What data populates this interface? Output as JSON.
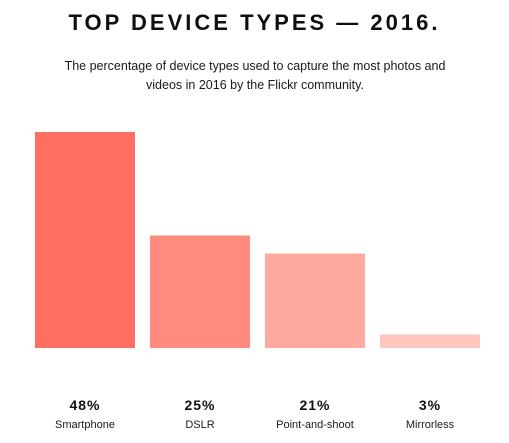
{
  "chart_data": {
    "type": "bar",
    "title": "TOP DEVICE TYPES — 2016.",
    "subtitle": "The percentage of device types used to capture the most photos and videos in 2016 by the Flickr community.",
    "categories": [
      "Smartphone",
      "DSLR",
      "Point-and-shoot",
      "Mirrorless"
    ],
    "values": [
      48,
      25,
      21,
      3
    ],
    "value_labels": [
      "48%",
      "25%",
      "21%",
      "3%"
    ],
    "colors": [
      "#ff6f61",
      "#ff8b7f",
      "#ffaaa1",
      "#ffc6c0"
    ],
    "ylim": [
      0,
      48
    ],
    "grid": false,
    "legend": "none"
  }
}
